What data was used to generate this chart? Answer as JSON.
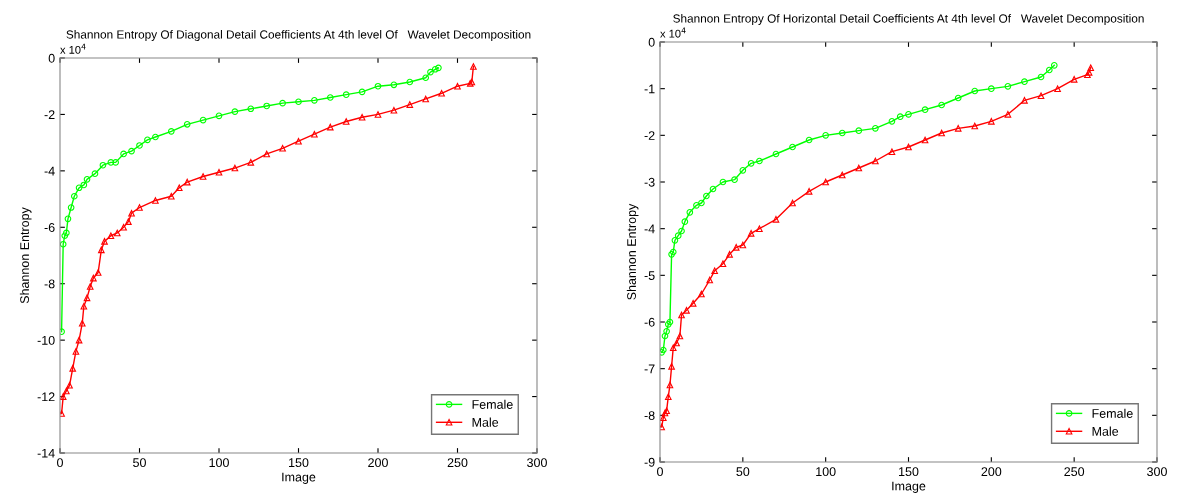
{
  "chart_data": [
    {
      "type": "line",
      "title": "Shannon Entropy Of Diagonal Detail Coefficients At 4th level Of   Wavelet Decomposition",
      "xlabel": "Image",
      "ylabel": "Shannon Entropy",
      "annotations": [
        "x 10$^{4}$"
      ],
      "xlim": [
        0,
        300
      ],
      "xticks": [
        0,
        50,
        100,
        150,
        200,
        250,
        300
      ],
      "ylim": [
        -14,
        0
      ],
      "yticks": [
        -14,
        -12,
        -10,
        -8,
        -6,
        -4,
        -2,
        0
      ],
      "grid": false,
      "legend": "bottom right",
      "line_style": "solid",
      "series": [
        {
          "name": "Female",
          "color": "#00ff00",
          "marker": "circle",
          "x": [
            1,
            2,
            3,
            4,
            5,
            7,
            9,
            12,
            15,
            17,
            22,
            27,
            32,
            35,
            40,
            45,
            50,
            55,
            60,
            70,
            80,
            90,
            100,
            110,
            120,
            130,
            140,
            150,
            160,
            170,
            180,
            190,
            200,
            210,
            220,
            230,
            233,
            236,
            238
          ],
          "values": [
            -9.7,
            -6.6,
            -6.3,
            -6.2,
            -5.7,
            -5.3,
            -4.9,
            -4.6,
            -4.5,
            -4.3,
            -4.1,
            -3.8,
            -3.7,
            -3.7,
            -3.4,
            -3.3,
            -3.1,
            -2.9,
            -2.8,
            -2.6,
            -2.35,
            -2.2,
            -2.05,
            -1.9,
            -1.8,
            -1.7,
            -1.6,
            -1.55,
            -1.5,
            -1.4,
            -1.3,
            -1.2,
            -1.0,
            -0.95,
            -0.85,
            -0.7,
            -0.5,
            -0.4,
            -0.35
          ]
        },
        {
          "name": "Male",
          "color": "#ff0000",
          "marker": "triangle",
          "x": [
            1,
            2,
            4,
            6,
            8,
            10,
            12,
            14,
            15,
            17,
            19,
            21,
            24,
            26,
            28,
            32,
            36,
            40,
            43,
            45,
            50,
            60,
            70,
            75,
            80,
            90,
            100,
            110,
            120,
            130,
            140,
            150,
            160,
            170,
            180,
            190,
            200,
            210,
            220,
            230,
            240,
            250,
            258,
            259,
            260
          ],
          "values": [
            -12.6,
            -12.0,
            -11.8,
            -11.6,
            -11.0,
            -10.4,
            -10.0,
            -9.4,
            -8.8,
            -8.5,
            -8.1,
            -7.8,
            -7.6,
            -6.8,
            -6.5,
            -6.3,
            -6.2,
            -6.0,
            -5.8,
            -5.5,
            -5.3,
            -5.05,
            -4.9,
            -4.6,
            -4.4,
            -4.2,
            -4.05,
            -3.9,
            -3.7,
            -3.4,
            -3.2,
            -2.95,
            -2.7,
            -2.45,
            -2.25,
            -2.1,
            -2.0,
            -1.85,
            -1.65,
            -1.45,
            -1.25,
            -1.0,
            -0.9,
            -0.85,
            -0.3
          ]
        }
      ]
    },
    {
      "type": "line",
      "title": "Shannon Entropy Of Horizontal Detail Coefficients At 4th level Of   Wavelet Decomposition",
      "xlabel": "Image",
      "ylabel": "Shannon Entropy",
      "annotations": [
        "x 10$^{4}$"
      ],
      "xlim": [
        0,
        300
      ],
      "xticks": [
        0,
        50,
        100,
        150,
        200,
        250,
        300
      ],
      "ylim": [
        -9,
        0
      ],
      "yticks": [
        -9,
        -8,
        -7,
        -6,
        -5,
        -4,
        -3,
        -2,
        -1,
        0
      ],
      "grid": false,
      "legend": "bottom right",
      "line_style": "solid",
      "series": [
        {
          "name": "Female",
          "color": "#00ff00",
          "marker": "circle",
          "x": [
            1,
            2,
            3,
            4,
            5,
            6,
            7,
            8,
            9,
            11,
            13,
            15,
            18,
            22,
            25,
            28,
            32,
            38,
            45,
            50,
            55,
            60,
            70,
            80,
            90,
            100,
            110,
            120,
            130,
            140,
            145,
            150,
            160,
            170,
            180,
            190,
            200,
            210,
            220,
            230,
            235,
            238
          ],
          "values": [
            -6.65,
            -6.6,
            -6.3,
            -6.2,
            -6.05,
            -6.0,
            -4.55,
            -4.5,
            -4.25,
            -4.15,
            -4.05,
            -3.85,
            -3.65,
            -3.5,
            -3.45,
            -3.3,
            -3.15,
            -3.0,
            -2.95,
            -2.75,
            -2.6,
            -2.55,
            -2.4,
            -2.25,
            -2.1,
            -2.0,
            -1.95,
            -1.9,
            -1.85,
            -1.7,
            -1.6,
            -1.55,
            -1.45,
            -1.35,
            -1.2,
            -1.05,
            -1.0,
            -0.95,
            -0.85,
            -0.75,
            -0.6,
            -0.5
          ]
        },
        {
          "name": "Male",
          "color": "#ff0000",
          "marker": "triangle",
          "x": [
            1,
            2,
            3,
            4,
            5,
            6,
            7,
            8,
            10,
            12,
            13,
            16,
            20,
            25,
            30,
            33,
            38,
            42,
            46,
            50,
            55,
            60,
            70,
            80,
            90,
            100,
            110,
            120,
            130,
            140,
            150,
            160,
            170,
            180,
            190,
            200,
            210,
            220,
            230,
            240,
            250,
            258,
            259,
            260
          ],
          "values": [
            -8.25,
            -8.05,
            -7.95,
            -7.9,
            -7.6,
            -7.35,
            -6.95,
            -6.55,
            -6.45,
            -6.3,
            -5.85,
            -5.75,
            -5.6,
            -5.4,
            -5.1,
            -4.9,
            -4.75,
            -4.55,
            -4.4,
            -4.35,
            -4.1,
            -4.0,
            -3.8,
            -3.45,
            -3.2,
            -3.0,
            -2.85,
            -2.7,
            -2.55,
            -2.35,
            -2.25,
            -2.1,
            -1.95,
            -1.85,
            -1.8,
            -1.7,
            -1.55,
            -1.25,
            -1.15,
            -1.0,
            -0.8,
            -0.7,
            -0.65,
            -0.55
          ]
        }
      ]
    }
  ]
}
